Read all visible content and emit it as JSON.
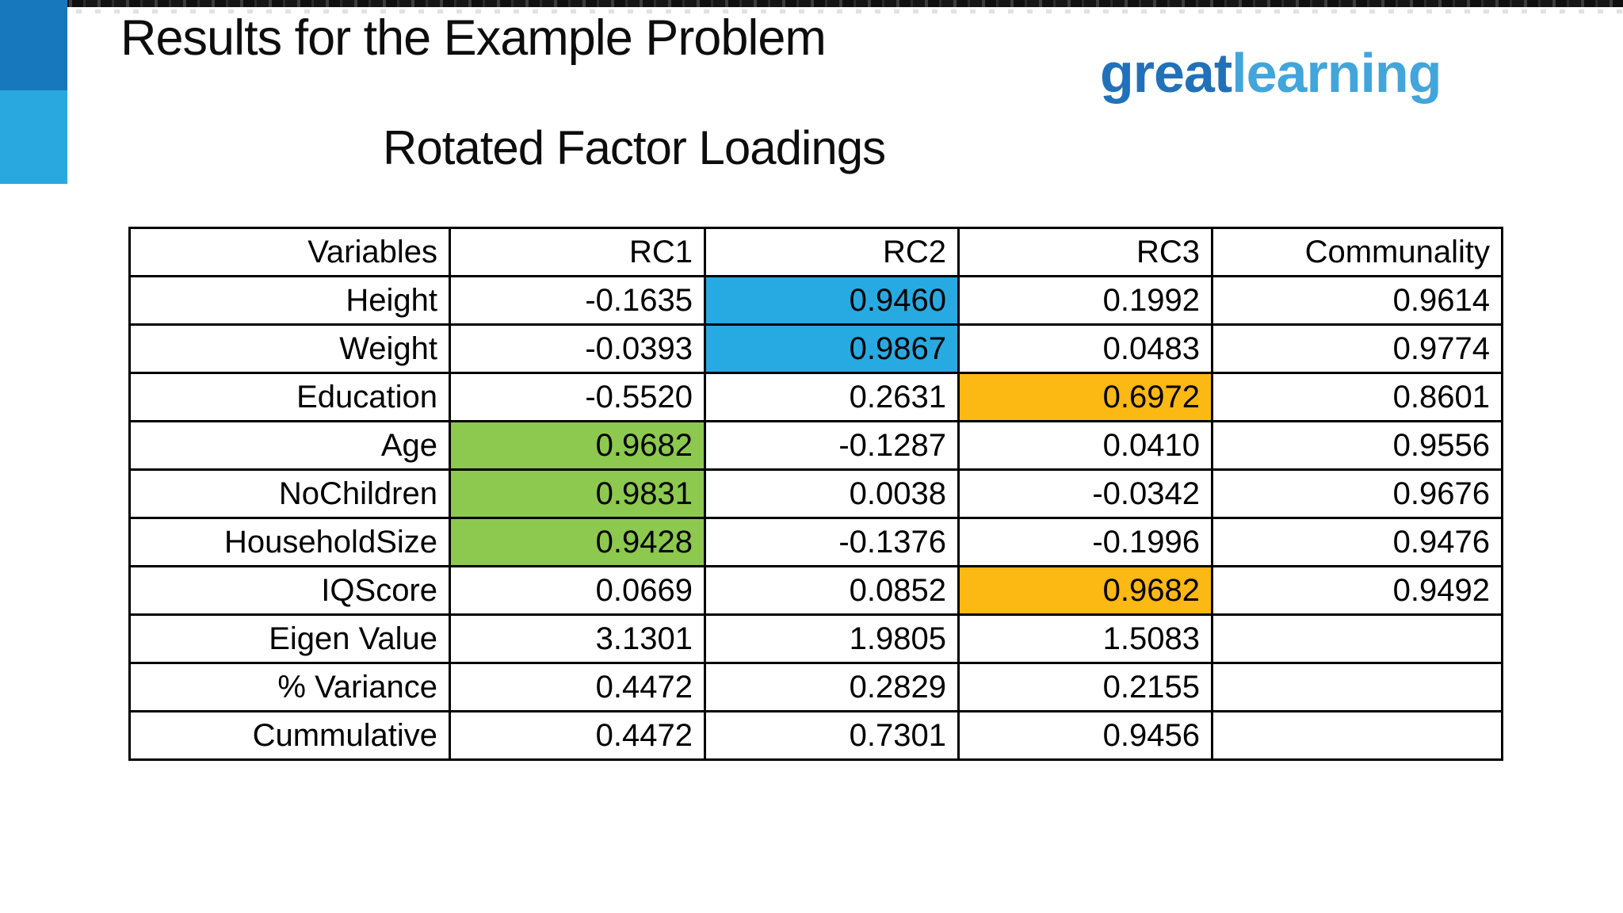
{
  "slide": {
    "title": "Results for the Example Problem",
    "subtitle": "Rotated Factor Loadings"
  },
  "logo": {
    "part1": "great",
    "part2": "learning",
    "part1_color": "#2071B9",
    "part2_color": "#42A5DC"
  },
  "accent": {
    "bar_top_color": "#1878BE",
    "bar_bottom_color": "#29A8DF"
  },
  "highlight_colors": {
    "blue": "#27AAE1",
    "green": "#8DC84F",
    "orange": "#FCB813"
  },
  "table": {
    "headers": [
      "Variables",
      "RC1",
      "RC2",
      "RC3",
      "Communality"
    ],
    "rows": [
      {
        "label": "Height",
        "values": [
          "-0.1635",
          "0.9460",
          "0.1992",
          "0.9614"
        ],
        "highlights": [
          null,
          "blue",
          null,
          null
        ]
      },
      {
        "label": "Weight",
        "values": [
          "-0.0393",
          "0.9867",
          "0.0483",
          "0.9774"
        ],
        "highlights": [
          null,
          "blue",
          null,
          null
        ]
      },
      {
        "label": "Education",
        "values": [
          "-0.5520",
          "0.2631",
          "0.6972",
          "0.8601"
        ],
        "highlights": [
          null,
          null,
          "orange",
          null
        ]
      },
      {
        "label": "Age",
        "values": [
          "0.9682",
          "-0.1287",
          "0.0410",
          "0.9556"
        ],
        "highlights": [
          "green",
          null,
          null,
          null
        ]
      },
      {
        "label": "NoChildren",
        "values": [
          "0.9831",
          "0.0038",
          "-0.0342",
          "0.9676"
        ],
        "highlights": [
          "green",
          null,
          null,
          null
        ]
      },
      {
        "label": "HouseholdSize",
        "values": [
          "0.9428",
          "-0.1376",
          "-0.1996",
          "0.9476"
        ],
        "highlights": [
          "green",
          null,
          null,
          null
        ]
      },
      {
        "label": "IQScore",
        "values": [
          "0.0669",
          "0.0852",
          "0.9682",
          "0.9492"
        ],
        "highlights": [
          null,
          null,
          "orange",
          null
        ]
      },
      {
        "label": "Eigen Value",
        "values": [
          "3.1301",
          "1.9805",
          "1.5083",
          ""
        ],
        "highlights": [
          null,
          null,
          null,
          null
        ]
      },
      {
        "label": "% Variance",
        "values": [
          "0.4472",
          "0.2829",
          "0.2155",
          ""
        ],
        "highlights": [
          null,
          null,
          null,
          null
        ]
      },
      {
        "label": "Cummulative",
        "values": [
          "0.4472",
          "0.7301",
          "0.9456",
          ""
        ],
        "highlights": [
          null,
          null,
          null,
          null
        ]
      }
    ]
  }
}
